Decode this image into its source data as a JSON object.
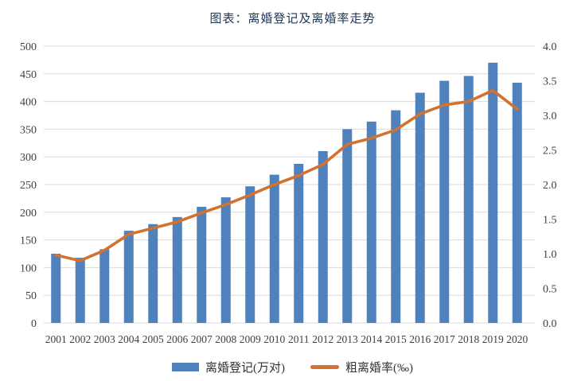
{
  "chart_data": {
    "type": "bar",
    "title": "图表：离婚登记及离婚率走势",
    "categories": [
      "2001",
      "2002",
      "2003",
      "2004",
      "2005",
      "2006",
      "2007",
      "2008",
      "2009",
      "2010",
      "2011",
      "2012",
      "2013",
      "2014",
      "2015",
      "2016",
      "2017",
      "2018",
      "2019",
      "2020"
    ],
    "series": [
      {
        "name": "离婚登记(万对)",
        "type": "bar",
        "axis": "left",
        "color": "#4f81bd",
        "values": [
          125.0,
          117.7,
          133.1,
          166.5,
          178.5,
          191.3,
          209.8,
          226.9,
          246.8,
          267.8,
          287.4,
          310.4,
          350.0,
          363.7,
          384.1,
          415.8,
          437.4,
          446.1,
          470.1,
          433.9
        ]
      },
      {
        "name": "粗离婚率(‰)",
        "type": "line",
        "axis": "right",
        "color": "#d2722e",
        "values": [
          0.98,
          0.9,
          1.05,
          1.28,
          1.37,
          1.46,
          1.59,
          1.71,
          1.85,
          2.0,
          2.13,
          2.29,
          2.58,
          2.67,
          2.79,
          3.02,
          3.15,
          3.2,
          3.36,
          3.09
        ]
      }
    ],
    "left_axis": {
      "min": 0,
      "max": 500,
      "step": 50,
      "tick_labels": [
        "0",
        "50",
        "100",
        "150",
        "200",
        "250",
        "300",
        "350",
        "400",
        "450",
        "500"
      ]
    },
    "right_axis": {
      "min": 0,
      "max": 4,
      "step": 0.5,
      "tick_labels": [
        "0.0",
        "0.5",
        "1.0",
        "1.5",
        "2.0",
        "2.5",
        "3.0",
        "3.5",
        "4.0"
      ]
    },
    "grid": true,
    "legend_position": "bottom"
  },
  "colors": {
    "background": "#ffffff",
    "grid": "#d9d9d9",
    "axis_text": "#404040",
    "title_text": "#1f3550"
  }
}
